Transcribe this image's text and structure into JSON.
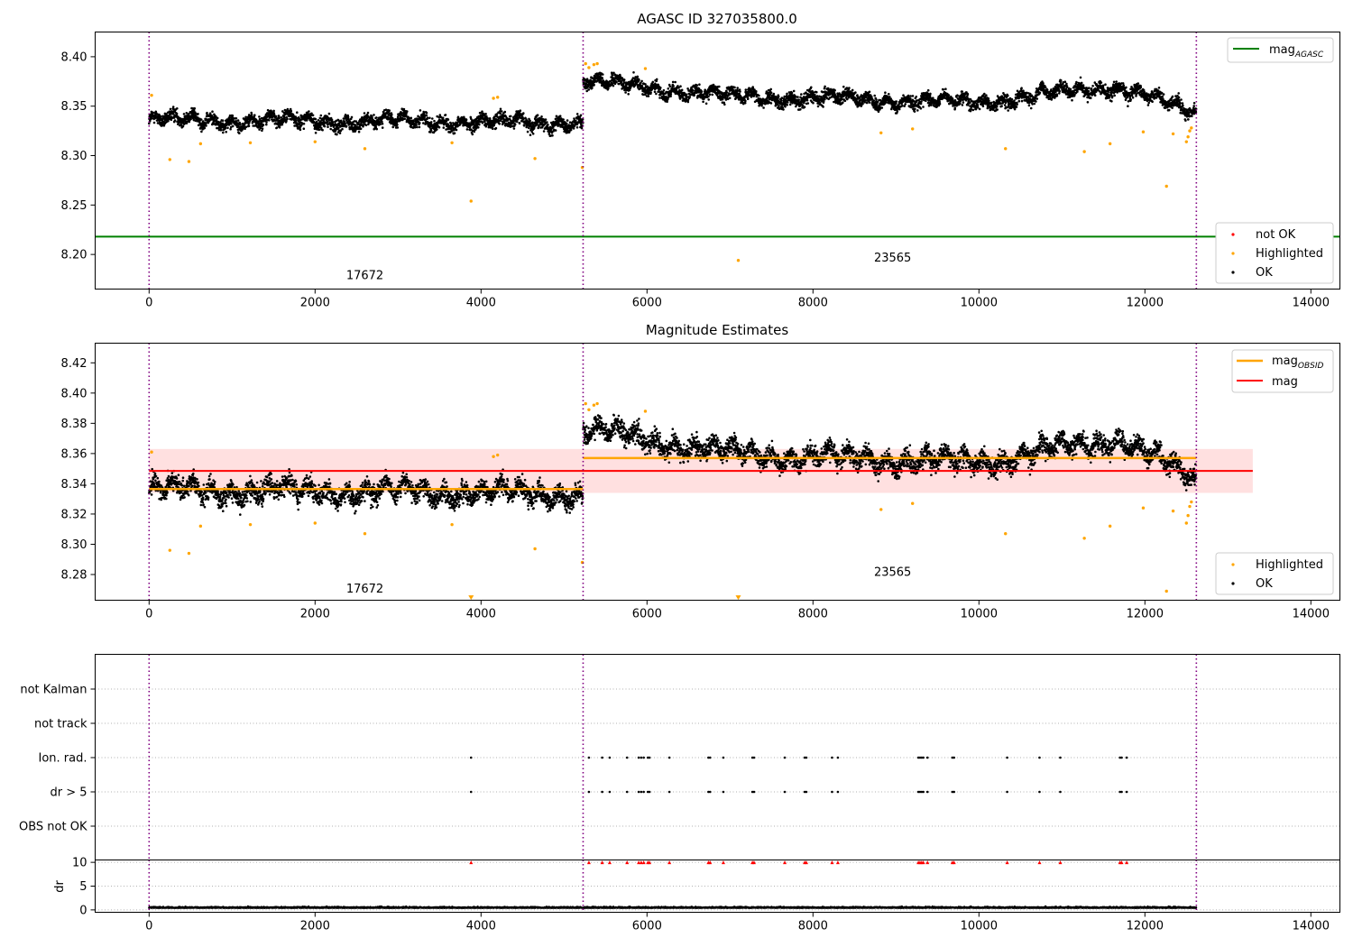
{
  "colors": {
    "ok": "#000000",
    "highlighted": "#ffa500",
    "not_ok": "#ff0000",
    "agasc_line": "#008000",
    "obsid_line": "#ffa500",
    "mag_line": "#ff0000",
    "mag_band": "#ffe0e0",
    "obs_boundary": "#800080",
    "grid": "#b0b0b0"
  },
  "chart_data": [
    {
      "type": "scatter",
      "title": "AGASC ID 327035800.0",
      "xlim": [
        -650,
        14350
      ],
      "ylim": [
        8.165,
        8.425
      ],
      "xticks": [
        0,
        2000,
        4000,
        6000,
        8000,
        10000,
        12000,
        14000
      ],
      "xtick_labels": [
        "0",
        "2000",
        "4000",
        "6000",
        "8000",
        "10000",
        "12000",
        "14000"
      ],
      "yticks": [
        8.2,
        8.25,
        8.3,
        8.35,
        8.4
      ],
      "ytick_labels": [
        "8.20",
        "8.25",
        "8.30",
        "8.35",
        "8.40"
      ],
      "obs_boundaries": [
        0,
        5230,
        12620
      ],
      "obs_labels": [
        {
          "text": "17672",
          "x": 2600,
          "y": 8.175
        },
        {
          "text": "23565",
          "x": 8960,
          "y": 8.193
        }
      ],
      "lines": [
        {
          "name": "mag_AGASC",
          "y": 8.218,
          "x0": -650,
          "x1": 14350
        }
      ],
      "legend_top": {
        "label_main": "mag",
        "label_sub": "AGASC"
      },
      "legend_bottom": [
        "not OK",
        "Highlighted",
        "OK"
      ],
      "series": [
        {
          "name": "OK",
          "segments": [
            {
              "x0": 0,
              "x1": 5230,
              "trend": [
                [
                  0,
                  8.336
                ],
                [
                  4000,
                  8.334
                ],
                [
                  5230,
                  8.333
                ]
              ]
            },
            {
              "x0": 5230,
              "x1": 12620,
              "trend": [
                [
                  5230,
                  8.376
                ],
                [
                  7000,
                  8.36
                ],
                [
                  10000,
                  8.354
                ],
                [
                  11700,
                  8.37
                ],
                [
                  12620,
                  8.342
                ]
              ]
            }
          ]
        },
        {
          "name": "Highlighted",
          "points": [
            [
              30,
              8.361
            ],
            [
              250,
              8.296
            ],
            [
              480,
              8.294
            ],
            [
              620,
              8.312
            ],
            [
              1220,
              8.313
            ],
            [
              2000,
              8.314
            ],
            [
              2600,
              8.307
            ],
            [
              3650,
              8.313
            ],
            [
              3880,
              8.254
            ],
            [
              4150,
              8.358
            ],
            [
              4200,
              8.359
            ],
            [
              4650,
              8.297
            ],
            [
              5220,
              8.288
            ],
            [
              5260,
              8.393
            ],
            [
              5300,
              8.389
            ],
            [
              5360,
              8.392
            ],
            [
              5400,
              8.393
            ],
            [
              5980,
              8.388
            ],
            [
              7100,
              8.194
            ],
            [
              8820,
              8.323
            ],
            [
              9200,
              8.327
            ],
            [
              10320,
              8.307
            ],
            [
              11270,
              8.304
            ],
            [
              11580,
              8.312
            ],
            [
              11980,
              8.324
            ],
            [
              12260,
              8.269
            ],
            [
              12340,
              8.322
            ],
            [
              12500,
              8.314
            ],
            [
              12520,
              8.319
            ],
            [
              12540,
              8.325
            ],
            [
              12560,
              8.328
            ]
          ]
        }
      ]
    },
    {
      "type": "scatter",
      "title": "Magnitude Estimates",
      "xlim": [
        -650,
        14350
      ],
      "ylim": [
        8.263,
        8.433
      ],
      "xticks": [
        0,
        2000,
        4000,
        6000,
        8000,
        10000,
        12000,
        14000
      ],
      "xtick_labels": [
        "0",
        "2000",
        "4000",
        "6000",
        "8000",
        "10000",
        "12000",
        "14000"
      ],
      "yticks": [
        8.28,
        8.3,
        8.32,
        8.34,
        8.36,
        8.38,
        8.4,
        8.42
      ],
      "ytick_labels": [
        "8.28",
        "8.30",
        "8.32",
        "8.34",
        "8.36",
        "8.38",
        "8.40",
        "8.42"
      ],
      "obs_boundaries": [
        0,
        5230,
        12620
      ],
      "obs_labels": [
        {
          "text": "17672",
          "x": 2600,
          "y": 8.268
        },
        {
          "text": "23565",
          "x": 8960,
          "y": 8.279
        }
      ],
      "mag": {
        "value": 8.3485,
        "band": [
          8.334,
          8.363
        ],
        "x0": 0,
        "x1": 13300
      },
      "mag_obsid": [
        {
          "x0": 0,
          "x1": 5230,
          "value": 8.3365
        },
        {
          "x0": 5230,
          "x1": 12620,
          "value": 8.357
        }
      ],
      "legend_top": [
        {
          "label_main": "mag",
          "label_sub": "OBSID"
        },
        {
          "label_main": "mag",
          "label_sub": ""
        }
      ],
      "legend_bottom": [
        "Highlighted",
        "OK"
      ],
      "series": [
        {
          "name": "OK",
          "segments": [
            {
              "x0": 0,
              "x1": 5230,
              "trend": [
                [
                  0,
                  8.336
                ],
                [
                  4000,
                  8.334
                ],
                [
                  5230,
                  8.333
                ]
              ]
            },
            {
              "x0": 5230,
              "x1": 12620,
              "trend": [
                [
                  5230,
                  8.376
                ],
                [
                  7000,
                  8.36
                ],
                [
                  10000,
                  8.354
                ],
                [
                  11700,
                  8.37
                ],
                [
                  12620,
                  8.342
                ]
              ]
            }
          ]
        },
        {
          "name": "Highlighted",
          "points": [
            [
              30,
              8.361
            ],
            [
              250,
              8.296
            ],
            [
              480,
              8.294
            ],
            [
              620,
              8.312
            ],
            [
              1220,
              8.313
            ],
            [
              2000,
              8.314
            ],
            [
              2600,
              8.307
            ],
            [
              3650,
              8.313
            ],
            [
              4150,
              8.358
            ],
            [
              4200,
              8.359
            ],
            [
              4650,
              8.297
            ],
            [
              5220,
              8.288
            ],
            [
              5260,
              8.393
            ],
            [
              5300,
              8.389
            ],
            [
              5360,
              8.392
            ],
            [
              5400,
              8.393
            ],
            [
              5980,
              8.388
            ],
            [
              8820,
              8.323
            ],
            [
              9200,
              8.327
            ],
            [
              10320,
              8.307
            ],
            [
              11270,
              8.304
            ],
            [
              11580,
              8.312
            ],
            [
              11980,
              8.324
            ],
            [
              12260,
              8.269
            ],
            [
              12340,
              8.322
            ],
            [
              12500,
              8.314
            ],
            [
              12520,
              8.319
            ],
            [
              12540,
              8.325
            ],
            [
              12560,
              8.328
            ]
          ]
        },
        {
          "name": "Highlighted (below axis)",
          "points": [
            [
              3880,
              8.265
            ],
            [
              7100,
              8.265
            ]
          ]
        }
      ]
    },
    {
      "type": "scatter",
      "title": "",
      "xlim": [
        -650,
        14350
      ],
      "categories": [
        "not Kalman",
        "not track",
        "Ion. rad.",
        "dr > 5",
        "OBS not OK"
      ],
      "obs_boundaries": [
        0,
        5230,
        12620
      ],
      "flag_times": [
        3880,
        5300,
        5460,
        5550,
        5760,
        5900,
        5930,
        5960,
        6010,
        6030,
        6270,
        6740,
        6760,
        6920,
        7270,
        7290,
        7660,
        7900,
        7920,
        8230,
        8300,
        9270,
        9290,
        9310,
        9330,
        9380,
        9680,
        9700,
        10340,
        10730,
        10980,
        11700,
        11720,
        11780
      ],
      "series": [
        {
          "name": "Ion. rad.",
          "x_ref": "flag_times"
        },
        {
          "name": "dr > 5",
          "x_ref": "flag_times"
        }
      ]
    },
    {
      "type": "scatter",
      "title": "",
      "ylabel": "dr",
      "xlim": [
        -650,
        14350
      ],
      "ylim": [
        -0.5,
        10.5
      ],
      "xticks": [
        0,
        2000,
        4000,
        6000,
        8000,
        10000,
        12000,
        14000
      ],
      "xtick_labels": [
        "0",
        "2000",
        "4000",
        "6000",
        "8000",
        "10000",
        "12000",
        "14000"
      ],
      "yticks": [
        0,
        5,
        10
      ],
      "ytick_labels": [
        "0",
        "5",
        "10"
      ],
      "obs_boundaries": [
        0,
        5230,
        12620
      ],
      "series": [
        {
          "name": "dr",
          "segments": [
            {
              "x0": 0,
              "x1": 12620,
              "level": 0.4
            }
          ]
        },
        {
          "name": "dr clipped (not OK)",
          "x_ref": "flag_times",
          "y": 10
        }
      ]
    }
  ]
}
